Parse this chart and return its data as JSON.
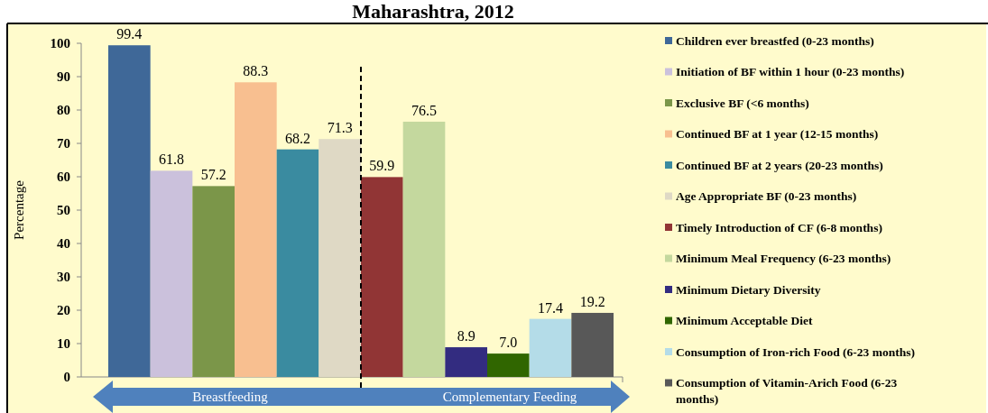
{
  "chart_data": {
    "type": "bar",
    "title": "Maharashtra, 2012",
    "ylabel": "Percentage",
    "categories": [
      null
    ],
    "series": [
      {
        "name": "Children ever breastfed (0-23 months)",
        "color": "#3f6898",
        "values": [
          99.4
        ],
        "value_labels": [
          "99.4"
        ]
      },
      {
        "name": "Initiation of BF within 1 hour (0-23 months)",
        "color": "#cbc1dc",
        "values": [
          61.8
        ],
        "value_labels": [
          "61.8"
        ]
      },
      {
        "name": "Exclusive BF (<6 months)",
        "color": "#7b9649",
        "values": [
          57.2
        ],
        "value_labels": [
          "57.2"
        ]
      },
      {
        "name": "Continued BF at 1 year (12-15 months)",
        "color": "#f8bf90",
        "values": [
          88.3
        ],
        "value_labels": [
          "88.3"
        ]
      },
      {
        "name": "Continued BF at 2 years (20-23 months)",
        "color": "#3a8ba0",
        "values": [
          68.2
        ],
        "value_labels": [
          "68.2"
        ]
      },
      {
        "name": "Age Appropriate BF (0-23 months)",
        "color": "#dfd9c5",
        "values": [
          71.3
        ],
        "value_labels": [
          "71.3"
        ]
      },
      {
        "name": "Timely Introduction of CF (6-8 months)",
        "color": "#913535",
        "values": [
          59.9
        ],
        "value_labels": [
          "59.9"
        ]
      },
      {
        "name": "Minimum Meal Frequency (6-23 months)",
        "color": "#c4d89e",
        "values": [
          76.5
        ],
        "value_labels": [
          "76.5"
        ]
      },
      {
        "name": "Minimum Dietary Diversity",
        "color": "#332c80",
        "values": [
          8.9
        ],
        "value_labels": [
          "8.9"
        ]
      },
      {
        "name": "Minimum Acceptable Diet",
        "color": "#306600",
        "values": [
          7.0
        ],
        "value_labels": [
          "7.0"
        ]
      },
      {
        "name": "Consumption of Iron-rich Food (6-23 months)",
        "color": "#b4dce8",
        "values": [
          17.4
        ],
        "value_labels": [
          "17.4"
        ]
      },
      {
        "name": "Consumption of Vitamin-Arich Food (6-23 months)",
        "color": "#585858",
        "values": [
          19.2
        ],
        "value_labels": [
          "19.2"
        ]
      }
    ],
    "ylim": [
      0,
      100
    ],
    "yticks": [
      0,
      10,
      20,
      30,
      40,
      50,
      60,
      70,
      80,
      90,
      100
    ],
    "tick_labels": "y",
    "legend": "right",
    "grid": false,
    "annotations": [
      "Breastfeeding",
      "Complementary Feeding"
    ]
  }
}
